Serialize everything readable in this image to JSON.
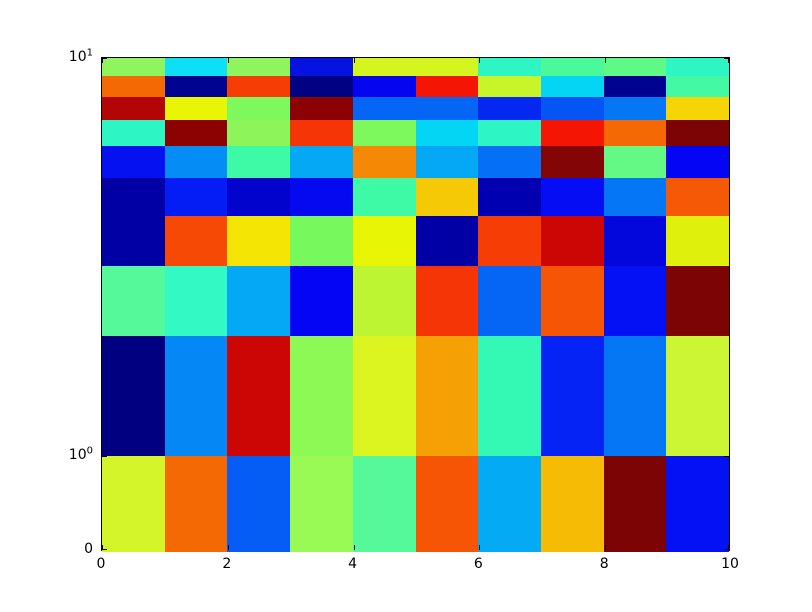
{
  "figure": {
    "background": "#ffffff",
    "spine_color": "#000000"
  },
  "chart_data": {
    "type": "heatmap",
    "title": "",
    "xlabel": "",
    "ylabel": "",
    "colormap": "jet",
    "grid": "off",
    "legend": "none",
    "x_range": [
      0,
      10
    ],
    "y_range": [
      0,
      10
    ],
    "y_scale": "symlog (linear 0 to 1, log 1 to 10)",
    "n_cols": 10,
    "n_rows": 10,
    "x_ticks": [
      {
        "value": 0,
        "label": "0"
      },
      {
        "value": 2,
        "label": "2"
      },
      {
        "value": 4,
        "label": "4"
      },
      {
        "value": 6,
        "label": "6"
      },
      {
        "value": 8,
        "label": "8"
      },
      {
        "value": 10,
        "label": "10"
      }
    ],
    "y_ticks": [
      {
        "value": 0,
        "label": "0",
        "base": "",
        "exp": ""
      },
      {
        "value": 1,
        "label": "10^0",
        "base": "10",
        "exp": "0"
      },
      {
        "value": 10,
        "label": "10^1",
        "base": "10",
        "exp": "1"
      }
    ],
    "rows_top_to_bottom": [
      {
        "y_from": 9,
        "y_to": 10,
        "colors": [
          "#8ef55e",
          "#0ddff5",
          "#8ef55e",
          "#0513e0",
          "#d4f51e",
          "#d4f51e",
          "#2df5c4",
          "#4bf99b",
          "#5ef987",
          "#2df5c4"
        ]
      },
      {
        "y_from": 8,
        "y_to": 9,
        "colors": [
          "#f56905",
          "#00038f",
          "#f53d05",
          "#000284",
          "#0505f0",
          "#f51505",
          "#c8f52a",
          "#05d5f5",
          "#00038f",
          "#44f9a4"
        ]
      },
      {
        "y_from": 7,
        "y_to": 8,
        "colors": [
          "#b20505",
          "#e8f505",
          "#7df95e",
          "#8c0101",
          "#0566f5",
          "#0566f5",
          "#0528f0",
          "#0555f5",
          "#0577f5",
          "#f5d505"
        ]
      },
      {
        "y_from": 6,
        "y_to": 7,
        "colors": [
          "#2df5c4",
          "#8c0101",
          "#8df55a",
          "#f53505",
          "#7df95e",
          "#05d5f5",
          "#2df5c4",
          "#f51505",
          "#f56905",
          "#7c0404"
        ]
      },
      {
        "y_from": 5,
        "y_to": 6,
        "colors": [
          "#0511f0",
          "#058cf5",
          "#3ef9a6",
          "#05a8f5",
          "#f58905",
          "#05a8f5",
          "#0570f5",
          "#840505",
          "#63f984",
          "#0505f5"
        ]
      },
      {
        "y_from": 4,
        "y_to": 5,
        "colors": [
          "#0000a4",
          "#051df5",
          "#0203cd",
          "#0509f0",
          "#3ef9a6",
          "#f5c905",
          "#0000b0",
          "#050df5",
          "#0577f5",
          "#f55905"
        ]
      },
      {
        "y_from": 3,
        "y_to": 4,
        "colors": [
          "#0000a4",
          "#f54905",
          "#f5e505",
          "#77f95e",
          "#e8f505",
          "#0000a4",
          "#f53d05",
          "#cc0505",
          "#0407dc",
          "#dff00c"
        ]
      },
      {
        "y_from": 2,
        "y_to": 3,
        "colors": [
          "#55f999",
          "#33f9c4",
          "#05a8f5",
          "#0505f5",
          "#bdf533",
          "#f53505",
          "#0566f5",
          "#f55505",
          "#0511f5",
          "#7c0404"
        ]
      },
      {
        "y_from": 1,
        "y_to": 2,
        "colors": [
          "#000080",
          "#0588f5",
          "#cc0505",
          "#8cf955",
          "#dcf520",
          "#f5a005",
          "#33f9b4",
          "#0523f5",
          "#0577f5",
          "#ccf533"
        ]
      },
      {
        "y_from": 0,
        "y_to": 1,
        "colors": [
          "#d4f52a",
          "#f56905",
          "#055df5",
          "#99f955",
          "#55f999",
          "#f55505",
          "#05aaf5",
          "#f5bb05",
          "#7c0404",
          "#0511f5"
        ]
      }
    ]
  }
}
